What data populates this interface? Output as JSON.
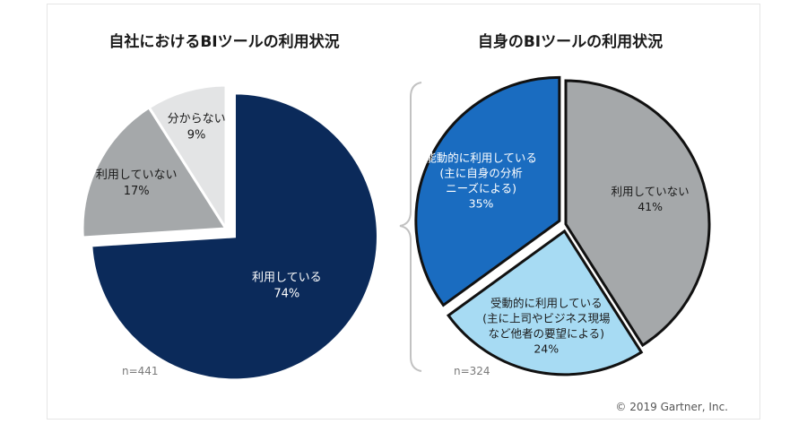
{
  "chart_data": [
    {
      "type": "pie",
      "title": "自社におけるBIツールの利用状況",
      "sample_size": "n=441",
      "slices": [
        {
          "label": "利用している",
          "value": 74,
          "value_label": "74%",
          "color": "#0b2a5a",
          "text_color": "#ffffff",
          "exploded": true
        },
        {
          "label": "利用していない",
          "value": 17,
          "value_label": "17%",
          "color": "#a5a8aa",
          "text_color": "#1a1a1a",
          "exploded": false
        },
        {
          "label": "分からない",
          "value": 9,
          "value_label": "9%",
          "color": "#e3e4e5",
          "text_color": "#1a1a1a",
          "exploded": false
        }
      ]
    },
    {
      "type": "pie",
      "title": "自身のBIツールの利用状況",
      "sample_size": "n=324",
      "slices": [
        {
          "label": "利用していない",
          "value": 41,
          "value_label": "41%",
          "color": "#a5a8aa",
          "text_color": "#1a1a1a",
          "exploded": false
        },
        {
          "label": "受動的に利用している\n(主に上司やビジネス現場\nなど他者の要望による)",
          "value": 24,
          "value_label": "24%",
          "color": "#a7dbf3",
          "text_color": "#1a1a1a",
          "exploded": true
        },
        {
          "label": "能動的に利用している\n(主に自身の分析\nニーズによる)",
          "value": 35,
          "value_label": "35%",
          "color": "#1a6cc0",
          "text_color": "#ffffff",
          "exploded": true
        }
      ]
    }
  ],
  "copyright": "© 2019 Gartner, Inc."
}
